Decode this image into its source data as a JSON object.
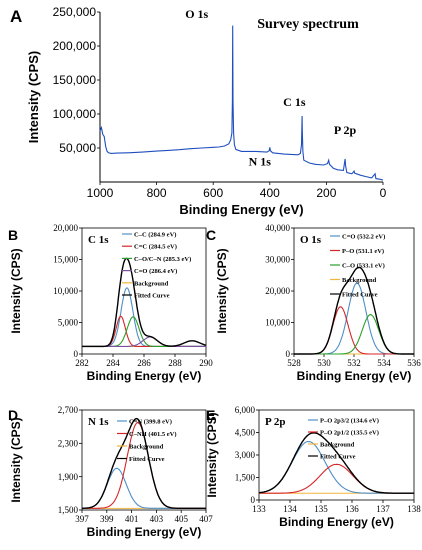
{
  "figure": {
    "panel_labels": [
      "A",
      "B",
      "C",
      "D",
      "E"
    ]
  },
  "chart_data": [
    {
      "panel": "A",
      "type": "line",
      "title": "Survey spectrum",
      "xlabel": "Binding Energy  (eV)",
      "ylabel": "Intensity (CPS)",
      "xlim": [
        1000,
        0
      ],
      "ylim": [
        0,
        250000
      ],
      "x_reversed": true,
      "xticks": [
        1000,
        800,
        600,
        400,
        200,
        0
      ],
      "yticks": [
        50000,
        100000,
        150000,
        200000,
        250000
      ],
      "ytick_labels": [
        "50,000",
        "100,000",
        "150,000",
        "200,000",
        "250,000"
      ],
      "line_color": "#1f4fbf",
      "peak_labels": [
        {
          "text": "O 1s",
          "x": 531,
          "y": 232000
        },
        {
          "text": "C 1s",
          "x": 285,
          "y": 97000
        },
        {
          "text": "N 1s",
          "x": 400,
          "y": 45000
        },
        {
          "text": "P 2p",
          "x": 134,
          "y": 62000
        }
      ],
      "spectrum": [
        [
          1000,
          75000
        ],
        [
          995,
          80000
        ],
        [
          990,
          70000
        ],
        [
          985,
          67000
        ],
        [
          980,
          52000
        ],
        [
          975,
          45000
        ],
        [
          970,
          43000
        ],
        [
          960,
          42000
        ],
        [
          940,
          42500
        ],
        [
          900,
          43000
        ],
        [
          850,
          44000
        ],
        [
          800,
          45500
        ],
        [
          760,
          46500
        ],
        [
          720,
          47500
        ],
        [
          680,
          49000
        ],
        [
          640,
          50000
        ],
        [
          600,
          51000
        ],
        [
          580,
          51500
        ],
        [
          560,
          53000
        ],
        [
          545,
          56000
        ],
        [
          538,
          62000
        ],
        [
          534,
          72000
        ],
        [
          532,
          120000
        ],
        [
          531,
          230000
        ],
        [
          530,
          120000
        ],
        [
          528,
          72000
        ],
        [
          525,
          55000
        ],
        [
          520,
          48000
        ],
        [
          500,
          45000
        ],
        [
          450,
          45000
        ],
        [
          410,
          44000
        ],
        [
          402,
          46000
        ],
        [
          400,
          51000
        ],
        [
          398,
          46000
        ],
        [
          390,
          43000
        ],
        [
          350,
          41000
        ],
        [
          300,
          40000
        ],
        [
          292,
          42000
        ],
        [
          288,
          55000
        ],
        [
          286,
          97000
        ],
        [
          285,
          75000
        ],
        [
          283,
          45000
        ],
        [
          280,
          32000
        ],
        [
          260,
          28000
        ],
        [
          240,
          26000
        ],
        [
          210,
          25000
        ],
        [
          196,
          27000
        ],
        [
          192,
          32000
        ],
        [
          189,
          26000
        ],
        [
          175,
          20000
        ],
        [
          160,
          18000
        ],
        [
          140,
          17000
        ],
        [
          136,
          28000
        ],
        [
          134,
          34000
        ],
        [
          132,
          24000
        ],
        [
          128,
          14000
        ],
        [
          110,
          12000
        ],
        [
          102,
          16000
        ],
        [
          100,
          13000
        ],
        [
          80,
          10000
        ],
        [
          60,
          8000
        ],
        [
          40,
          6000
        ],
        [
          28,
          12000
        ],
        [
          25,
          5000
        ],
        [
          10,
          4000
        ],
        [
          0,
          3000
        ]
      ]
    },
    {
      "panel": "B",
      "type": "line",
      "title": "C 1s",
      "xlabel": "Binding Energy (eV)",
      "ylabel": "Intensity (CPS)",
      "xlim": [
        282,
        290
      ],
      "ylim": [
        0,
        20000
      ],
      "xticks": [
        282,
        284,
        286,
        288,
        290
      ],
      "yticks": [
        0,
        5000,
        10000,
        15000,
        20000
      ],
      "ytick_labels": [
        "0",
        "5,000",
        "10,000",
        "15,000",
        "20,000"
      ],
      "background": 1200,
      "components": [
        {
          "name": "C–C  (284.9 eV)",
          "center": 284.9,
          "height": 9300,
          "fwhm": 0.9,
          "color": "#4f8fc7"
        },
        {
          "name": "C=C  (284.5 eV)",
          "center": 284.5,
          "height": 4800,
          "fwhm": 0.7,
          "color": "#d62728"
        },
        {
          "name": "C–O/C–N  (285.3 eV)",
          "center": 285.3,
          "height": 4700,
          "fwhm": 0.9,
          "color": "#2ca02c"
        },
        {
          "name": "C=O  (286.4 eV)",
          "center": 286.4,
          "height": 1500,
          "fwhm": 1.1,
          "color": "#7b4fa0"
        }
      ],
      "extra_peak": {
        "center": 289.1,
        "height": 900,
        "fwhm": 1.2
      },
      "legend": [
        "C–C  (284.9 eV)",
        "C=C  (284.5 eV)",
        "C–O/C–N  (285.3 eV)",
        "C=O  (286.4 eV)",
        "Background",
        "Fitted Curve"
      ],
      "fit_color": "#000000",
      "background_color": "#f2b53c"
    },
    {
      "panel": "C",
      "type": "line",
      "title": "O 1s",
      "xlabel": "Binding Energy (eV)",
      "ylabel": "Intensity (CPS)",
      "xlim": [
        528,
        536
      ],
      "ylim": [
        0,
        40000
      ],
      "xticks": [
        528,
        530,
        532,
        534,
        536
      ],
      "yticks": [
        0,
        10000,
        20000,
        30000,
        40000
      ],
      "ytick_labels": [
        "0",
        "10,000",
        "20,000",
        "30,000",
        "40,000"
      ],
      "background": 0,
      "components": [
        {
          "name": "C=O  (532.2 eV)",
          "center": 532.2,
          "height": 22500,
          "fwhm": 1.4,
          "color": "#4f8fc7"
        },
        {
          "name": "P–O  (531.1 eV)",
          "center": 531.1,
          "height": 15000,
          "fwhm": 1.2,
          "color": "#d62728"
        },
        {
          "name": "C–O  (533.1 eV)",
          "center": 533.1,
          "height": 12500,
          "fwhm": 1.3,
          "color": "#2ca02c"
        }
      ],
      "legend": [
        "C=O  (532.2 eV)",
        "P–O  (531.1 eV)",
        "C–O  (533.1 eV)",
        "Background",
        "Fitted Curve"
      ],
      "fit_color": "#000000",
      "background_color": "#f2b53c"
    },
    {
      "panel": "D",
      "type": "line",
      "title": "N 1s",
      "xlabel": "Binding Energy (eV)",
      "ylabel": "Intensity (CPS)",
      "xlim": [
        397,
        407
      ],
      "ylim": [
        1500,
        2700
      ],
      "xticks": [
        397,
        399,
        401,
        403,
        405,
        407
      ],
      "yticks": [
        1500,
        1900,
        2300,
        2700
      ],
      "ytick_labels": [
        "1,500",
        "1,900",
        "2,300",
        "2,700"
      ],
      "background": 1520,
      "components": [
        {
          "name": "C=N  (399.8 eV)",
          "center": 399.8,
          "height": 480,
          "fwhm": 1.8,
          "color": "#4f8fc7"
        },
        {
          "name": "C–NH  (401.5 eV)",
          "center": 401.5,
          "height": 1030,
          "fwhm": 2.0,
          "color": "#d62728"
        }
      ],
      "legend": [
        "C=N  (399.8 eV)",
        "C–NH  (401.5 eV)",
        "Background",
        "Fitted Curve"
      ],
      "fit_color": "#000000",
      "background_color": "#f2b53c"
    },
    {
      "panel": "E",
      "type": "line",
      "title": "P 2p",
      "xlabel": "Binding Energy  (eV)",
      "ylabel": "Intensity (CPS)",
      "xlim": [
        133,
        138
      ],
      "ylim": [
        0,
        6000
      ],
      "xticks": [
        133,
        134,
        135,
        136,
        137,
        138
      ],
      "yticks": [
        0,
        1500,
        3000,
        4500,
        6000
      ],
      "ytick_labels": [
        "0",
        "1,500",
        "3,000",
        "4,500",
        "6,000"
      ],
      "background": 450,
      "components": [
        {
          "name": "P–O 2p3/2  (134.6 eV)",
          "center": 134.6,
          "height": 3450,
          "fwhm": 1.25,
          "color": "#4f8fc7"
        },
        {
          "name": "P–O 2p1/2  (135.5 eV)",
          "center": 135.5,
          "height": 1930,
          "fwhm": 1.25,
          "color": "#d62728"
        }
      ],
      "legend": [
        "P–O 2p3/2  (134.6 eV)",
        "P–O 2p1/2  (135.5 eV)",
        "Background",
        "Fitted Curve"
      ],
      "fit_color": "#000000",
      "background_color": "#f2b53c"
    }
  ]
}
